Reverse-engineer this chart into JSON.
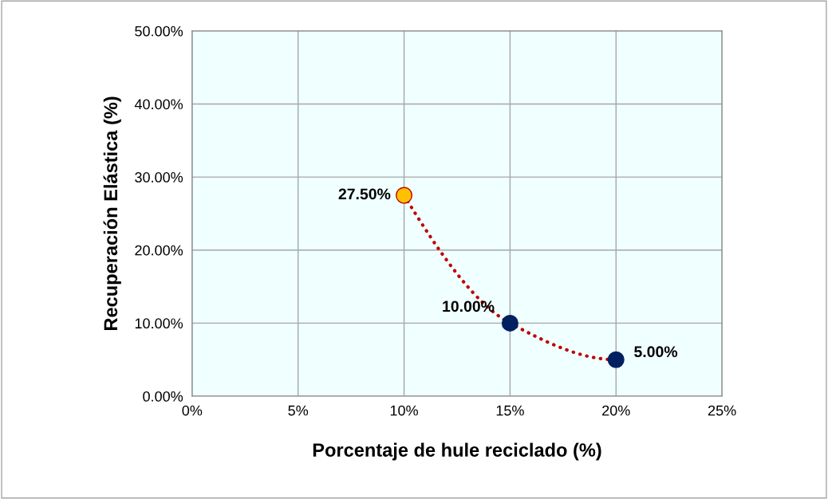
{
  "chart_data": {
    "type": "line",
    "xlabel": "Porcentaje de hule reciclado (%)",
    "ylabel": "Recuperación Elástica (%)",
    "x": [
      10,
      15,
      20
    ],
    "series": [
      {
        "values": [
          27.5,
          10,
          5
        ],
        "color": "#c00000",
        "colors": [
          "#ffc000",
          "#002060",
          "#002060"
        ],
        "value_labels": [
          "27.50%",
          "10.00%",
          "5.00%"
        ]
      }
    ],
    "xlim": [
      0,
      25
    ],
    "xticks": [
      {
        "value": 0,
        "label": "0%"
      },
      {
        "value": 5,
        "label": "5%"
      },
      {
        "value": 10,
        "label": "10%"
      },
      {
        "value": 15,
        "label": "15%"
      },
      {
        "value": 20,
        "label": "20%"
      },
      {
        "value": 25,
        "label": "25%"
      }
    ],
    "ylim": [
      0,
      50
    ],
    "yticks": [
      {
        "value": 0,
        "label": "0.00%"
      },
      {
        "value": 10,
        "label": "10.00%"
      },
      {
        "value": 20,
        "label": "20.00%"
      },
      {
        "value": 30,
        "label": "30.00%"
      },
      {
        "value": 40,
        "label": "40.00%"
      },
      {
        "value": 50,
        "label": "50.00%"
      }
    ],
    "grid": true,
    "marker": "circle",
    "line_style": "dotted"
  }
}
